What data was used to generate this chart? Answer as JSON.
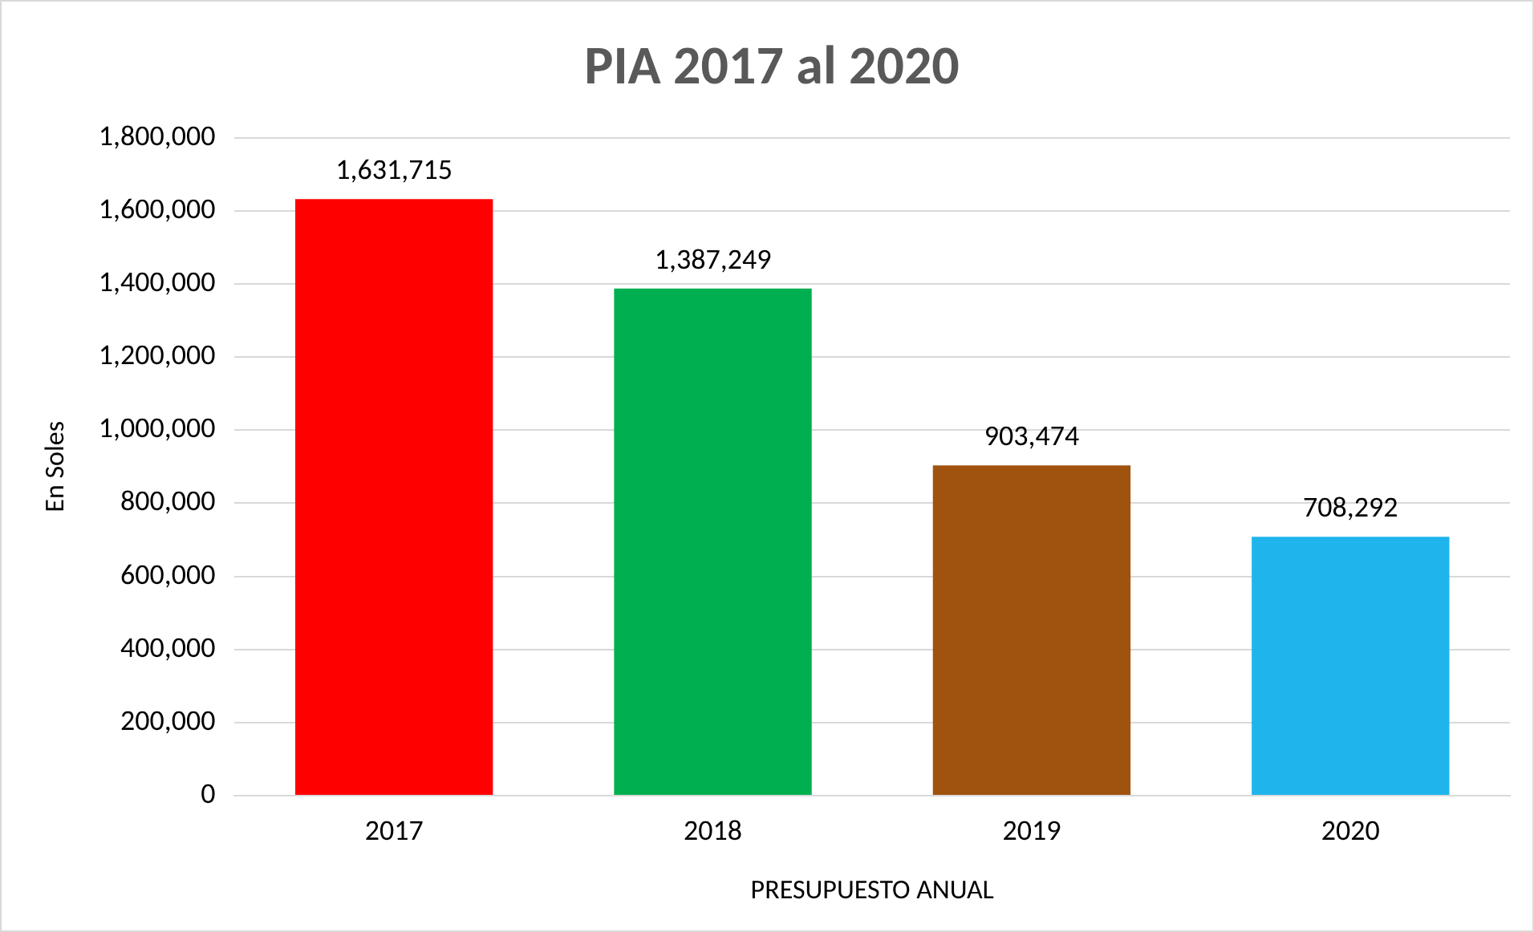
{
  "chart_data": {
    "type": "bar",
    "title": "PIA 2017 al 2020",
    "xlabel": "PRESUPUESTO ANUAL",
    "ylabel": "En Soles",
    "categories": [
      "2017",
      "2018",
      "2019",
      "2020"
    ],
    "values": [
      1631715,
      1387249,
      903474,
      708292
    ],
    "colors": [
      "#ff0000",
      "#00b050",
      "#a0520f",
      "#1fb4ec"
    ],
    "value_labels": [
      "1,631,715",
      "1,387,249",
      "903,474",
      "708,292"
    ],
    "ylim": [
      0,
      1800000
    ],
    "yticks": [
      0,
      {
        "value": 200000,
        "label": "200,000"
      },
      {
        "value": 400000,
        "label": "400,000"
      },
      {
        "value": 600000,
        "label": "600,000"
      },
      {
        "value": 800000,
        "label": "800,000"
      },
      {
        "value": 1000000,
        "label": "1,000,000"
      },
      {
        "value": 1200000,
        "label": "1,200,000"
      },
      {
        "value": 1400000,
        "label": "1,400,000"
      },
      {
        "value": 1600000,
        "label": "1,600,000"
      },
      {
        "value": 1800000,
        "label": "1,800,000"
      }
    ],
    "grid": "y",
    "legend": false
  }
}
